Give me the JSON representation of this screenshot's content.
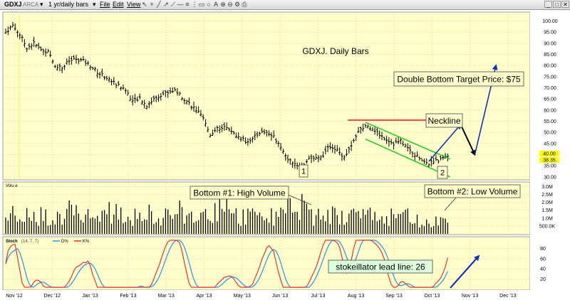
{
  "toolbar": {
    "symbol": "GDXJ",
    "exchange": "ARCA",
    "period": "1 yr/daily bars",
    "menu": [
      "File",
      "Edit",
      "View"
    ]
  },
  "colors": {
    "panel_bg": "#ffffcc",
    "grid": "#e0d6a8",
    "price_bars": "#000000",
    "volume_bars": "#000000",
    "stoch_d": "#3399ee",
    "stoch_k": "#ee2222",
    "neckline": "#ee2222",
    "channel": "#22cc22",
    "arrow_blue": "#1133bb",
    "highlight_box": "#ffff00"
  },
  "chart_data": [
    {
      "type": "bar",
      "subtype": "ohlc",
      "title": "GDXJ. Daily Bars",
      "x_labels": [
        "Nov '12",
        "Dec '12",
        "Jan '13",
        "Feb '13",
        "Mar '13",
        "Apr '13",
        "May '13",
        "Jun '13",
        "Jul '13",
        "Aug '13",
        "Sep '13",
        "Oct '13",
        "Nov '13",
        "Dec '13"
      ],
      "y_ticks": [
        "100.00",
        "95.00",
        "90.00",
        "85.00",
        "80.00",
        "75.00",
        "70.00",
        "65.00",
        "60.00",
        "55.00",
        "50.00",
        "45.00",
        "40.00",
        "35.00",
        "30.00"
      ],
      "ylim": [
        29,
        103
      ],
      "last_price_labels": [
        "40.00",
        "38.35"
      ],
      "close_by_week": [
        95,
        98,
        94,
        88,
        90,
        87,
        86,
        80,
        79,
        82,
        83,
        82,
        80,
        77,
        75,
        73,
        71,
        69,
        64,
        65,
        62,
        65,
        67,
        68,
        69,
        66,
        63,
        60,
        56,
        49,
        52,
        52,
        50,
        48,
        46,
        47,
        50,
        50,
        48,
        44,
        38,
        36,
        35,
        38,
        38,
        40,
        44,
        42,
        39,
        44,
        50,
        53,
        52,
        49,
        47,
        45,
        46,
        43,
        40,
        38,
        36,
        37,
        39
      ],
      "annotations": [
        {
          "text": "GDXJ. Daily Bars"
        },
        {
          "text": "Double Bottom Target Price: $75"
        },
        {
          "text": "Neckline"
        },
        {
          "text": "1"
        },
        {
          "text": "2"
        }
      ],
      "neckline_price": 55.5,
      "channel_upper": [
        [
          51,
          54.5
        ],
        [
          63,
          38
        ]
      ],
      "channel_lower": [
        [
          51,
          47
        ],
        [
          63,
          30
        ]
      ],
      "projection": [
        [
          60,
          37
        ],
        [
          64.5,
          53.5
        ],
        [
          66.5,
          40
        ],
        [
          69.5,
          80
        ]
      ]
    },
    {
      "type": "bar",
      "title": "Volume",
      "label": "Volu e",
      "y_ticks": [
        "3.0M",
        "2.5M",
        "2.0M",
        "1.5M",
        "1.0M",
        "500.0K"
      ],
      "ylim": [
        0,
        3.2
      ],
      "annotations": [
        {
          "text": "Bottom #1: High Volume"
        },
        {
          "text": "Bottom #2: Low Volume"
        }
      ]
    },
    {
      "type": "line",
      "title": "Stoch",
      "label": "Stoch",
      "params": "(14, 7, 7)",
      "series": [
        {
          "name": "D%"
        },
        {
          "name": "K%"
        }
      ],
      "y_ticks": [
        "80",
        "60",
        "40",
        "20"
      ],
      "ylim": [
        0,
        100
      ],
      "annotations": [
        {
          "text": "stokeillator lead line: 26"
        }
      ]
    }
  ]
}
